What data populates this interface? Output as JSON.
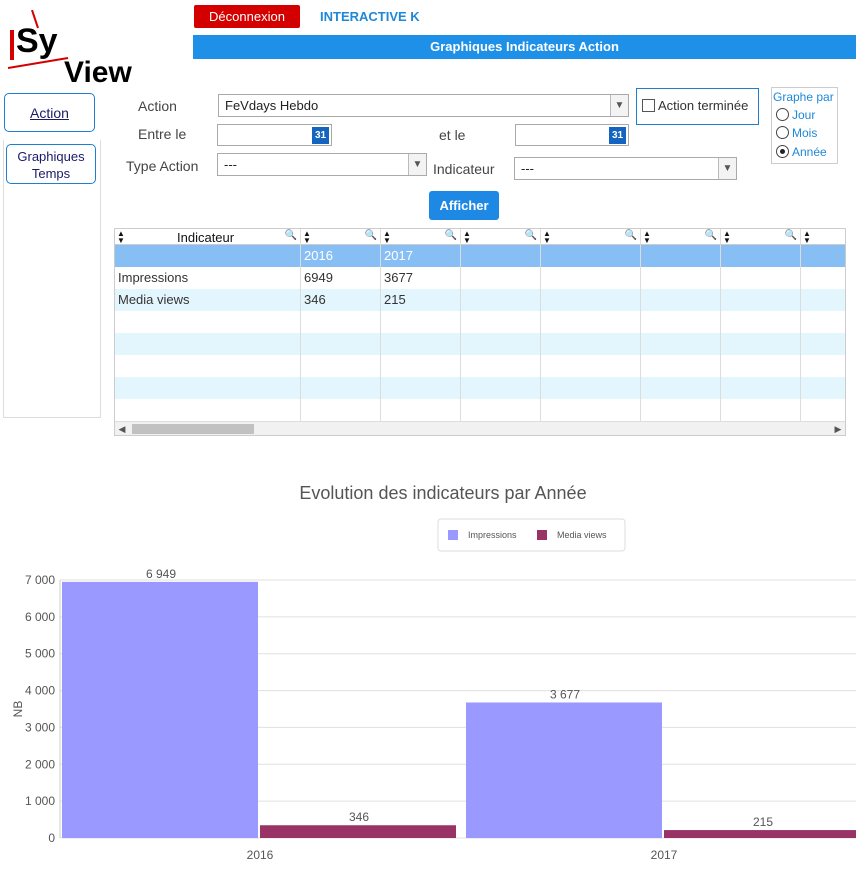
{
  "header": {
    "logout_label": "Déconnexion",
    "app_name": "INTERACTIVE K",
    "page_title": "Graphiques Indicateurs Action",
    "logo_text_1": "Sy",
    "logo_text_2": "View"
  },
  "nav": {
    "action_label": "Action",
    "graph_label_1": "Graphiques",
    "graph_label_2": "Temps"
  },
  "form": {
    "action_label": "Action",
    "action_value": "FeVdays Hebdo",
    "start_label": "Entre le",
    "end_label": "et le",
    "calendar_icon_text": "31",
    "type_label": "Type Action",
    "type_value": "---",
    "indicator_label": "Indicateur",
    "indicator_value": "---",
    "done_label": "Action terminée",
    "submit_label": "Afficher"
  },
  "graph_by": {
    "legend": "Graphe par",
    "options": [
      "Jour",
      "Mois",
      "Année"
    ],
    "selected": "Année"
  },
  "grid": {
    "column_header": "Indicateur",
    "years": [
      "2016",
      "2017"
    ],
    "rows": [
      {
        "name": "Impressions",
        "v2016": "6949",
        "v2017": "3677"
      },
      {
        "name": "Media views",
        "v2016": "346",
        "v2017": "215"
      }
    ]
  },
  "colors": {
    "accent": "#1e90e8",
    "logout": "#d40000",
    "impressions": "#9999ff",
    "media_views": "#993366",
    "row_alt": "#e3f6fd",
    "row_selected": "#87bff5"
  },
  "chart_data": {
    "type": "bar",
    "title": "Evolution des indicateurs par Année",
    "categories": [
      "2016",
      "2017"
    ],
    "series": [
      {
        "name": "Impressions",
        "values": [
          6949,
          3677
        ],
        "labels": [
          "6 949",
          "3 677"
        ]
      },
      {
        "name": "Media views",
        "values": [
          346,
          215
        ],
        "labels": [
          "346",
          "215"
        ]
      }
    ],
    "ylabel": "NB",
    "xlabel": "",
    "ylim": [
      0,
      7000
    ],
    "yticks": [
      0,
      1000,
      2000,
      3000,
      4000,
      5000,
      6000,
      7000
    ],
    "ytick_labels": [
      "0",
      "1 000",
      "2 000",
      "3 000",
      "4 000",
      "5 000",
      "6 000",
      "7 000"
    ],
    "grid": true,
    "legend_position": "top-center"
  }
}
